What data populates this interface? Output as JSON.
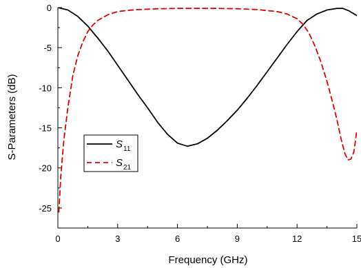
{
  "chart_data": {
    "type": "line",
    "title": "",
    "xlabel": "Frequency (GHz)",
    "ylabel": "S-Parameters (dB)",
    "xlim": [
      0,
      15
    ],
    "ylim": [
      -27.5,
      0
    ],
    "x_ticks": [
      0,
      3,
      6,
      9,
      12,
      15
    ],
    "y_ticks": [
      0,
      -5,
      -10,
      -15,
      -20,
      -25
    ],
    "grid": false,
    "legend_position": "left-middle",
    "series": [
      {
        "name": "S11",
        "label_main": "S",
        "label_sub": "11",
        "color": "#000000",
        "dash": "solid",
        "x": [
          0.0,
          0.5,
          1.0,
          1.5,
          2.0,
          2.5,
          3.0,
          3.5,
          4.0,
          4.5,
          5.0,
          5.5,
          6.0,
          6.5,
          7.0,
          7.5,
          8.0,
          8.5,
          9.0,
          9.5,
          10.0,
          10.5,
          11.0,
          11.5,
          12.0,
          12.5,
          13.0,
          13.5,
          14.0,
          14.3,
          14.6,
          15.0
        ],
        "y": [
          0.0,
          -0.3,
          -1.1,
          -2.3,
          -3.8,
          -5.4,
          -7.2,
          -9.0,
          -10.8,
          -12.5,
          -14.3,
          -15.8,
          -16.9,
          -17.3,
          -17.0,
          -16.3,
          -15.3,
          -14.1,
          -12.8,
          -11.3,
          -9.7,
          -8.0,
          -6.3,
          -4.6,
          -3.0,
          -1.6,
          -0.8,
          -0.3,
          -0.1,
          -0.1,
          -0.4,
          -1.0
        ]
      },
      {
        "name": "S21",
        "label_main": "S",
        "label_sub": "21",
        "color": "#e00000",
        "dash": "dashed",
        "x": [
          0.05,
          0.15,
          0.3,
          0.5,
          0.75,
          1.0,
          1.25,
          1.5,
          1.75,
          2.0,
          2.5,
          3.0,
          3.5,
          4.0,
          5.0,
          6.0,
          7.0,
          8.0,
          9.0,
          10.0,
          11.0,
          11.5,
          12.0,
          12.3,
          12.6,
          12.9,
          13.2,
          13.5,
          13.8,
          14.0,
          14.2,
          14.4,
          14.55,
          14.7,
          14.85,
          15.0
        ],
        "y": [
          -25.5,
          -21.0,
          -16.5,
          -12.5,
          -8.5,
          -6.0,
          -4.3,
          -3.0,
          -2.2,
          -1.6,
          -0.9,
          -0.5,
          -0.35,
          -0.25,
          -0.15,
          -0.1,
          -0.1,
          -0.1,
          -0.15,
          -0.25,
          -0.5,
          -0.8,
          -1.4,
          -2.1,
          -3.2,
          -4.8,
          -6.8,
          -9.2,
          -12.0,
          -14.0,
          -16.3,
          -18.2,
          -19.0,
          -18.9,
          -18.0,
          -15.3
        ]
      }
    ]
  }
}
